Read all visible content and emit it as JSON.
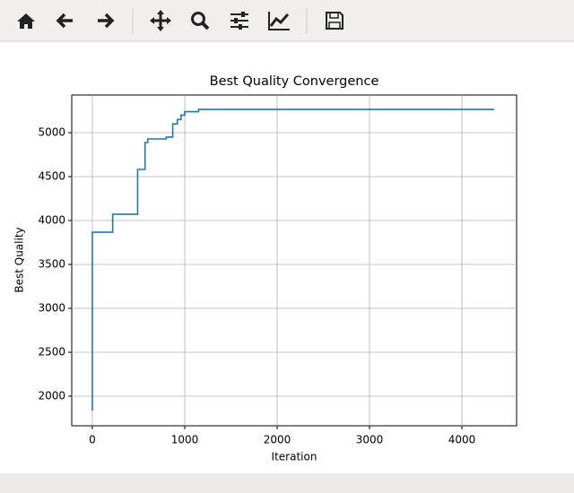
{
  "chart_data": {
    "type": "line",
    "title": "Best Quality Convergence",
    "x_label": "Iteration",
    "y_label": "Best Quality",
    "x": [
      0,
      0,
      220,
      220,
      490,
      490,
      570,
      570,
      600,
      600,
      800,
      800,
      870,
      870,
      920,
      920,
      960,
      960,
      1000,
      1000,
      1150,
      1150,
      4350
    ],
    "series": [
      {
        "name": "Best Quality",
        "color": "#1f77b4",
        "values": [
          1837,
          3867,
          3867,
          4071,
          4071,
          4582,
          4582,
          4888,
          4888,
          4929,
          4929,
          4950,
          4950,
          5100,
          5100,
          5150,
          5150,
          5200,
          5200,
          5240,
          5240,
          5265,
          5265
        ]
      }
    ],
    "xlim": [
      -223,
      4592
    ],
    "ylim": [
      1663,
      5429
    ],
    "xticks": [
      0,
      1000,
      2000,
      3000,
      4000
    ],
    "yticks": [
      2000,
      2500,
      3000,
      3500,
      4000,
      4500,
      5000
    ],
    "grid": true
  }
}
